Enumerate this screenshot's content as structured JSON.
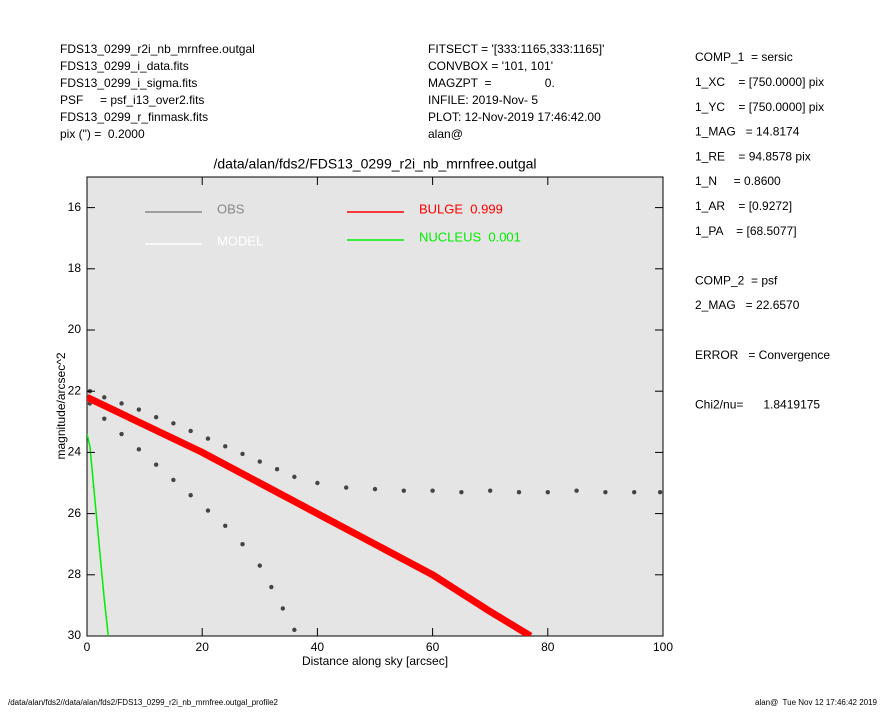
{
  "header": {
    "left": [
      "FDS13_0299_r2i_nb_mrnfree.outgal",
      "FDS13_0299_i_data.fits",
      "FDS13_0299_i_sigma.fits",
      "PSF     = psf_i13_over2.fits",
      "FDS13_0299_r_finmask.fits",
      "pix (\") =  0.2000"
    ],
    "middle": [
      "FITSECT = '[333:1165,333:1165]'",
      "CONVBOX = '101, 101'",
      "MAGZPT  =                0.",
      "INFILE: 2019-Nov- 5",
      "PLOT: 12-Nov-2019 17:46:42.00",
      "alan@"
    ],
    "right": [
      "COMP_1  = sersic",
      "1_XC    = [750.0000] pix",
      "1_YC    = [750.0000] pix",
      "1_MAG   = 14.8174",
      "1_RE    = 94.8578 pix",
      "1_N     = 0.8600",
      "1_AR    = [0.9272]",
      "1_PA    = [68.5077]",
      "",
      "COMP_2  = psf",
      "2_MAG   = 22.6570",
      "",
      "ERROR   = Convergence",
      "",
      "Chi2/nu=      1.8419175"
    ]
  },
  "footer": {
    "left": "/data/alan/fds2//data/alan/fds2/FDS13_0299_r2i_nb_mrnfree.outgal_profile2",
    "right": "alan@  Tue Nov 12 17:46:42 2019"
  },
  "chart_data": {
    "type": "scatter",
    "title": "/data/alan/fds2/FDS13_0299_r2i_nb_mrnfree.outgal",
    "x_label": "Distance along sky [arcsec]",
    "y_label": "magnitude/arcsec^2",
    "xlim": [
      0,
      100
    ],
    "ylim": [
      15,
      30
    ],
    "y_inverted": true,
    "xticks": [
      0,
      20,
      40,
      60,
      80,
      100
    ],
    "yticks": [
      16,
      18,
      20,
      22,
      24,
      26,
      28,
      30
    ],
    "series": [
      {
        "name": "OBS",
        "color": "#444444",
        "style": "points",
        "x": [
          0.5,
          3,
          6,
          9,
          12,
          15,
          18,
          21,
          24,
          27,
          30,
          33,
          36,
          40,
          45,
          50,
          55,
          60,
          65,
          70,
          75,
          80,
          85,
          90,
          95,
          99.5,
          0.5,
          3,
          6,
          9,
          12,
          15,
          18,
          21,
          24,
          27,
          30,
          32,
          34,
          36
        ],
        "values": [
          22.0,
          22.2,
          22.4,
          22.6,
          22.85,
          23.05,
          23.3,
          23.55,
          23.8,
          24.05,
          24.3,
          24.55,
          24.8,
          25.0,
          25.15,
          25.2,
          25.25,
          25.25,
          25.3,
          25.25,
          25.3,
          25.3,
          25.25,
          25.3,
          25.3,
          25.3,
          22.4,
          22.9,
          23.4,
          23.9,
          24.4,
          24.9,
          25.4,
          25.9,
          26.4,
          27.0,
          27.7,
          28.4,
          29.1,
          29.8
        ]
      },
      {
        "name": "MODEL",
        "color": "#ffffff",
        "style": "line",
        "x": [
          0,
          10,
          20,
          30,
          40,
          50,
          60,
          70,
          77
        ],
        "values": [
          22.3,
          23.2,
          24.1,
          25.0,
          26.0,
          27.0,
          28.0,
          29.1,
          29.9
        ]
      },
      {
        "name": "BULGE  0.999",
        "color": "#ff0000",
        "style": "band",
        "x": [
          0,
          10,
          20,
          30,
          40,
          50,
          60,
          70,
          77
        ],
        "values": [
          22.2,
          23.1,
          24.0,
          25.0,
          26.0,
          27.0,
          28.0,
          29.2,
          30.0
        ]
      },
      {
        "name": "NUCLEUS  0.001",
        "color": "#00ee00",
        "style": "line",
        "x": [
          0,
          0.5,
          1,
          2,
          3,
          3.7
        ],
        "values": [
          23.4,
          23.8,
          24.8,
          26.8,
          28.8,
          30.0
        ]
      }
    ]
  }
}
